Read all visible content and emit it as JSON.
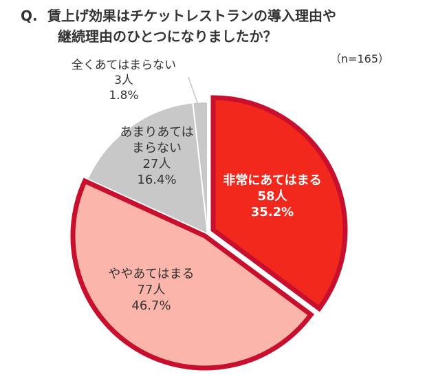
{
  "question": {
    "prefix": "Q.",
    "line1": "賃上げ効果はチケットレストランの導入理由や",
    "line2": "継続理由のひとつになりましたか？"
  },
  "sample_note": "（n=165）",
  "chart_data": {
    "type": "pie",
    "start_angle_deg": 0,
    "direction": "clockwise",
    "slices": [
      {
        "label": "非常にあてはまる",
        "count": "58人",
        "percent_label": "35.2%",
        "value": 35.2,
        "fill": "#f2281c",
        "stroke": "#c8102e",
        "text_color": "#ffffff",
        "highlight": true
      },
      {
        "label": "ややあてはまる",
        "count": "77人",
        "percent_label": "46.7%",
        "value": 46.7,
        "fill": "#fbb5aa",
        "stroke": "#c8102e",
        "text_color": "#333333",
        "highlight": true
      },
      {
        "label": "あまりあてはまらない",
        "label_lines": [
          "あまりあては",
          "まらない"
        ],
        "count": "27人",
        "percent_label": "16.4%",
        "value": 16.4,
        "fill": "#c8c8c8",
        "stroke": "#ffffff",
        "text_color": "#333333",
        "highlight": false
      },
      {
        "label": "全くあてはまらない",
        "count": "3人",
        "percent_label": "1.8%",
        "value": 1.8,
        "fill": "#c8c8c8",
        "stroke": "#ffffff",
        "text_color": "#333333",
        "highlight": false
      }
    ]
  }
}
